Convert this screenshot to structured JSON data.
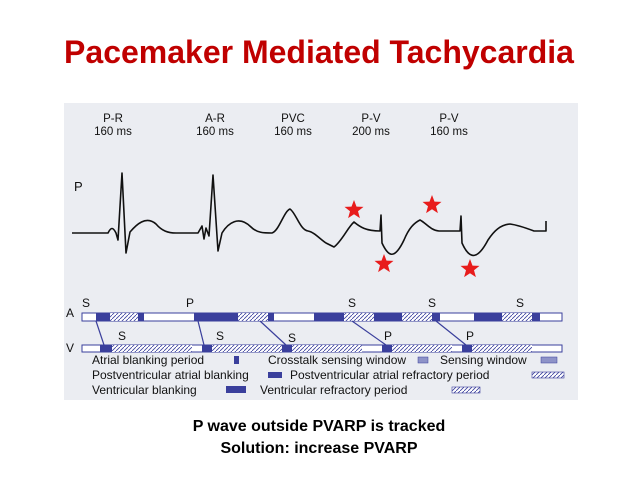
{
  "title": "Pacemaker Mediated Tachycardia",
  "colors": {
    "title": "#c00000",
    "star": "#e81c1c",
    "channel": "#3a3f9c",
    "diagram_bg": "#ebedf2"
  },
  "intervals": [
    {
      "label": "P-R",
      "value": "160 ms"
    },
    {
      "label": "A-R",
      "value": "160 ms"
    },
    {
      "label": "PVC",
      "value": "160 ms"
    },
    {
      "label": "P-V",
      "value": "200 ms"
    },
    {
      "label": "P-V",
      "value": "160 ms"
    }
  ],
  "ecg_label": "P",
  "channels": {
    "a_label": "A",
    "v_label": "V",
    "a_events": [
      "S",
      "P",
      "S",
      "S",
      "S"
    ],
    "v_events": [
      "S",
      "S",
      "S",
      "P",
      "P"
    ]
  },
  "legend": {
    "atrial_blanking": "Atrial blanking period",
    "crosstalk": "Crosstalk sensing window",
    "sensing": "Sensing window",
    "pvab": "Postventricular atrial blanking",
    "pvarp": "Postventricular atrial refractory period",
    "ventricular_blanking": "Ventricular blanking",
    "vrp": "Ventricular refractory period"
  },
  "caption": {
    "line1": "P wave outside PVARP is tracked",
    "line2": "Solution: increase PVARP"
  }
}
